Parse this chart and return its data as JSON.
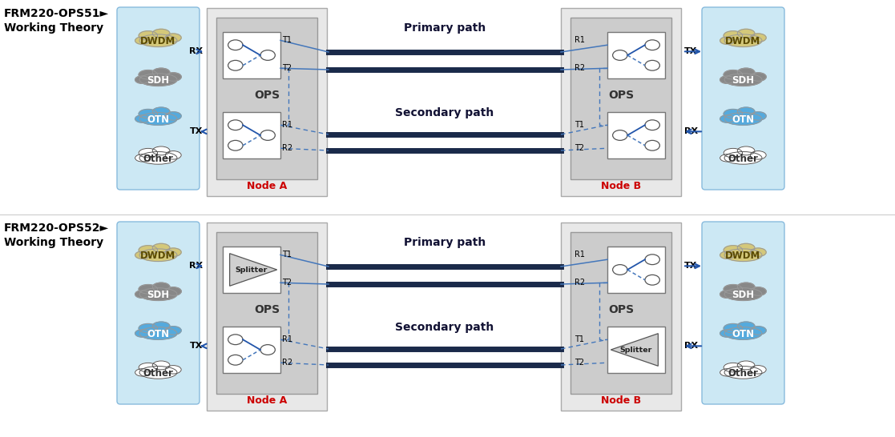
{
  "bg_color": "#ffffff",
  "node_box_color": "#e8e8e8",
  "ops_box_color": "#cccccc",
  "switch_box_color": "#ffffff",
  "cloud_bg_color": "#cce8f4",
  "primary_path_color": "#1a2a4a",
  "dashed_line_color": "#4477bb",
  "solid_arrow_color": "#2255aa",
  "node_label_color": "#cc0000",
  "clouds": [
    "DWDM",
    "SDH",
    "OTN",
    "Other"
  ],
  "cloud_colors": [
    "#d4c87a",
    "#888888",
    "#55aadd",
    "#ffffff"
  ],
  "cloud_text_colors": [
    "#5a4a00",
    "#ffffff",
    "#ffffff",
    "#333333"
  ],
  "header1": "FRM220-OPS51►",
  "header1b": "Working Theory",
  "header2": "FRM220-OPS52►",
  "header2b": "Working Theory",
  "nodeA_label": "Node A",
  "nodeB_label": "Node B",
  "ops_label": "OPS",
  "primary_label": "Primary path",
  "secondary_label": "Secondary path",
  "splitter_label": "Splitter"
}
